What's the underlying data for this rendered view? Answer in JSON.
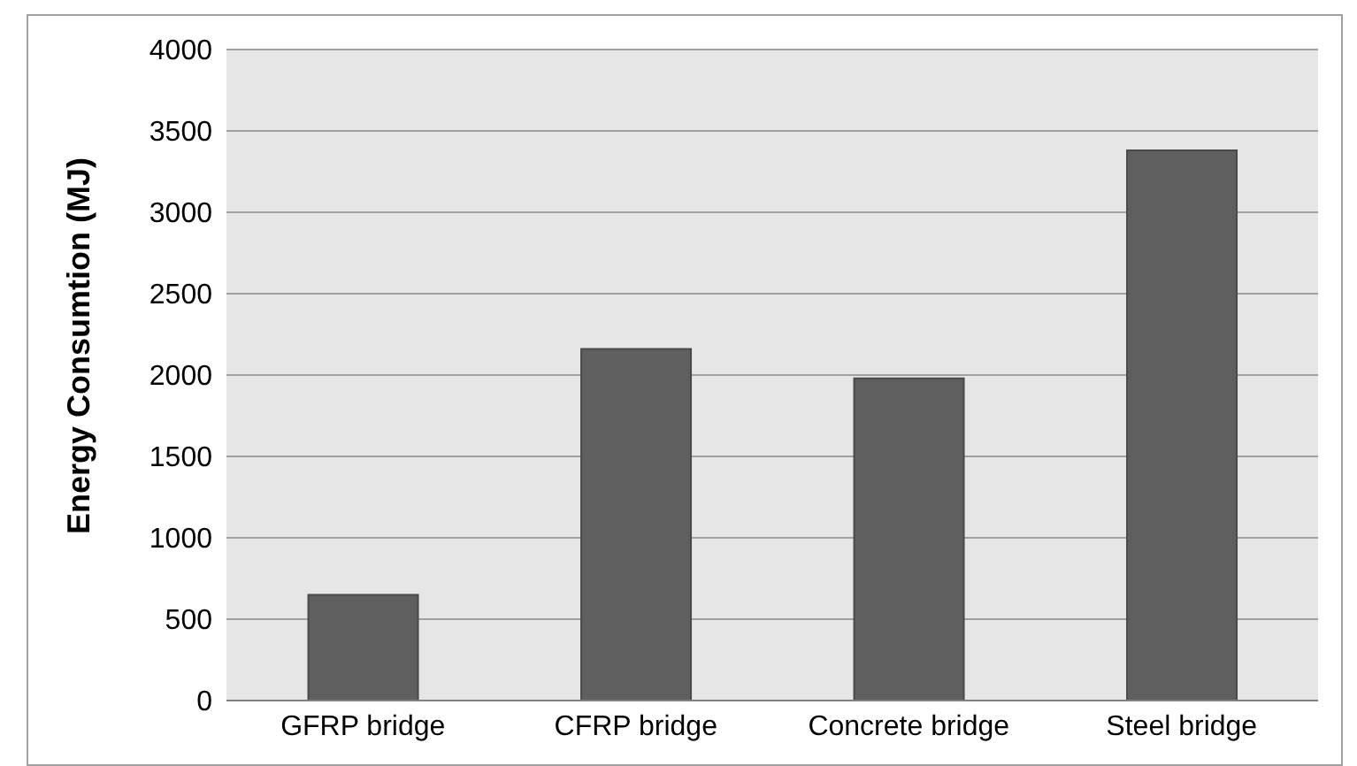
{
  "chart_data": {
    "type": "bar",
    "ylabel": "Energy Consumtion (MJ)",
    "categories": [
      "GFRP bridge",
      "CFRP bridge",
      "Concrete bridge",
      "Steel bridge"
    ],
    "values": [
      650,
      2160,
      1980,
      3380
    ],
    "color": "#5f5f5f",
    "ylim": [
      0,
      4000
    ],
    "yticks": [
      0,
      500,
      1000,
      1500,
      2000,
      2500,
      3000,
      3500,
      4000
    ],
    "grid": "y"
  }
}
